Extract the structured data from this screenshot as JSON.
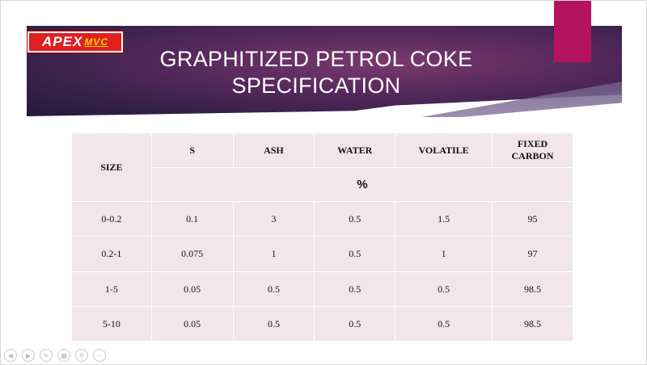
{
  "slide": {
    "logo": {
      "main": "APEX",
      "sub": "MVC"
    },
    "title_line1": "GRAPHITIZED PETROL COKE",
    "title_line2": "SPECIFICATION"
  },
  "table": {
    "size_header": "SIZE",
    "columns": [
      "S",
      "ASH",
      "WATER",
      "VOLATILE",
      "FIXED CARBON"
    ],
    "unit": "%",
    "rows": [
      {
        "size": "0-0.2",
        "s": "0.1",
        "ash": "3",
        "water": "0.5",
        "volatile": "1.5",
        "fixed_carbon": "95"
      },
      {
        "size": "0.2-1",
        "s": "0.075",
        "ash": "1",
        "water": "0.5",
        "volatile": "1",
        "fixed_carbon": "97"
      },
      {
        "size": "1-5",
        "s": "0.05",
        "ash": "0.5",
        "water": "0.5",
        "volatile": "0.5",
        "fixed_carbon": "98.5"
      },
      {
        "size": "5-10",
        "s": "0.05",
        "ash": "0.5",
        "water": "0.5",
        "volatile": "0.5",
        "fixed_carbon": "98.5"
      }
    ]
  },
  "controls": {
    "icons": [
      "previous-icon",
      "next-icon",
      "pen-icon",
      "slides-icon",
      "zoom-icon",
      "more-icon"
    ],
    "glyphs": [
      "◀",
      "▶",
      "✎",
      "▦",
      "⚲",
      "⋯"
    ]
  },
  "colors": {
    "accent": "#b3135f",
    "banner": "#4a2556",
    "table_bg": "#f3e6ea",
    "logo_red": "#e21f1f"
  }
}
